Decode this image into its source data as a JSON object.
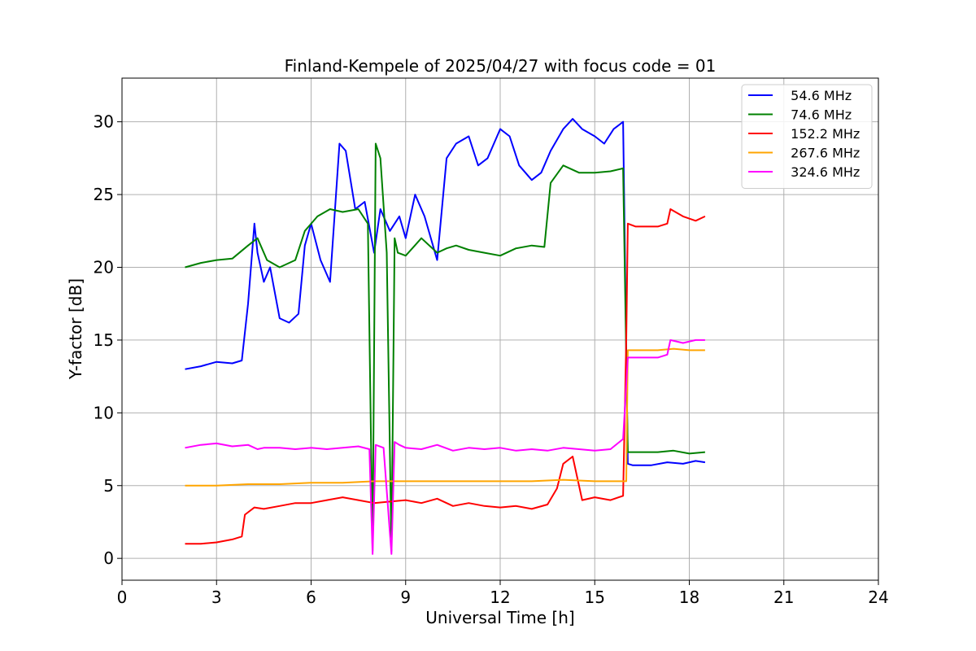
{
  "chart_data": {
    "type": "line",
    "title": "Finland-Kempele of 2025/04/27 with focus code = 01",
    "xlabel": "Universal Time [h]",
    "ylabel": "Y-factor [dB]",
    "xlim": [
      0,
      24
    ],
    "ylim": [
      -1.5,
      33
    ],
    "xticks": [
      0,
      3,
      6,
      9,
      12,
      15,
      18,
      21,
      24
    ],
    "yticks": [
      0,
      5,
      10,
      15,
      20,
      25,
      30
    ],
    "grid": true,
    "legend_position": "top-right",
    "series": [
      {
        "name": "  54.6 MHz",
        "color": "#0000ff",
        "x": [
          2.0,
          2.5,
          3.0,
          3.5,
          3.8,
          4.0,
          4.2,
          4.3,
          4.5,
          4.7,
          5.0,
          5.3,
          5.6,
          5.8,
          6.0,
          6.3,
          6.6,
          6.9,
          7.1,
          7.4,
          7.7,
          8.0,
          8.2,
          8.5,
          8.8,
          9.0,
          9.3,
          9.6,
          10.0,
          10.3,
          10.6,
          11.0,
          11.3,
          11.6,
          12.0,
          12.3,
          12.6,
          13.0,
          13.3,
          13.6,
          14.0,
          14.3,
          14.6,
          15.0,
          15.3,
          15.6,
          15.9,
          16.05,
          16.2,
          16.8,
          17.3,
          17.8,
          18.2,
          18.5
        ],
        "y": [
          13.0,
          13.2,
          13.5,
          13.4,
          13.6,
          17.5,
          23.0,
          21.0,
          19.0,
          20.0,
          16.5,
          16.2,
          16.8,
          21.5,
          23.0,
          20.5,
          19.0,
          28.5,
          28.0,
          24.0,
          24.5,
          21.0,
          24.0,
          22.5,
          23.5,
          22.0,
          25.0,
          23.5,
          20.5,
          27.5,
          28.5,
          29.0,
          27.0,
          27.5,
          29.5,
          29.0,
          27.0,
          26.0,
          26.5,
          28.0,
          29.5,
          30.2,
          29.5,
          29.0,
          28.5,
          29.5,
          30.0,
          6.5,
          6.4,
          6.4,
          6.6,
          6.5,
          6.7,
          6.6
        ]
      },
      {
        "name": "  74.6 MHz",
        "color": "#008000",
        "x": [
          2.0,
          2.5,
          3.0,
          3.5,
          4.0,
          4.3,
          4.6,
          5.0,
          5.5,
          5.8,
          6.2,
          6.6,
          7.0,
          7.5,
          7.8,
          7.95,
          8.05,
          8.2,
          8.4,
          8.55,
          8.65,
          8.75,
          9.0,
          9.5,
          10.0,
          10.3,
          10.6,
          11.0,
          11.5,
          12.0,
          12.5,
          13.0,
          13.4,
          13.6,
          14.0,
          14.5,
          15.0,
          15.5,
          15.9,
          16.05,
          16.5,
          17.0,
          17.5,
          18.0,
          18.5
        ],
        "y": [
          20.0,
          20.3,
          20.5,
          20.6,
          21.5,
          22.0,
          20.5,
          20.0,
          20.5,
          22.5,
          23.5,
          24.0,
          23.8,
          24.0,
          23.0,
          0.5,
          28.5,
          27.5,
          21.0,
          0.5,
          22.0,
          21.0,
          20.8,
          22.0,
          21.0,
          21.3,
          21.5,
          21.2,
          21.0,
          20.8,
          21.3,
          21.5,
          21.4,
          25.8,
          27.0,
          26.5,
          26.5,
          26.6,
          26.8,
          7.3,
          7.3,
          7.3,
          7.4,
          7.2,
          7.3
        ]
      },
      {
        "name": "  152.2 MHz",
        "color": "#ff0000",
        "x": [
          2.0,
          2.5,
          3.0,
          3.5,
          3.8,
          3.9,
          4.2,
          4.5,
          5.0,
          5.5,
          6.0,
          6.5,
          7.0,
          7.5,
          8.0,
          8.5,
          9.0,
          9.5,
          10.0,
          10.5,
          11.0,
          11.5,
          12.0,
          12.5,
          13.0,
          13.5,
          13.8,
          14.0,
          14.3,
          14.6,
          15.0,
          15.5,
          15.9,
          16.0,
          16.05,
          16.3,
          16.7,
          17.0,
          17.3,
          17.4,
          17.8,
          18.2,
          18.5
        ],
        "y": [
          1.0,
          1.0,
          1.1,
          1.3,
          1.5,
          3.0,
          3.5,
          3.4,
          3.6,
          3.8,
          3.8,
          4.0,
          4.2,
          4.0,
          3.8,
          3.9,
          4.0,
          3.8,
          4.1,
          3.6,
          3.8,
          3.6,
          3.5,
          3.6,
          3.4,
          3.7,
          4.8,
          6.5,
          7.0,
          4.0,
          4.2,
          4.0,
          4.3,
          15.0,
          23.0,
          22.8,
          22.8,
          22.8,
          23.0,
          24.0,
          23.5,
          23.2,
          23.5
        ]
      },
      {
        "name": "  267.6 MHz",
        "color": "#ffa500",
        "x": [
          2.0,
          3.0,
          4.0,
          5.0,
          6.0,
          7.0,
          8.0,
          9.0,
          10.0,
          11.0,
          12.0,
          13.0,
          14.0,
          15.0,
          16.0,
          16.05,
          16.5,
          17.0,
          17.5,
          18.0,
          18.5
        ],
        "y": [
          5.0,
          5.0,
          5.1,
          5.1,
          5.2,
          5.2,
          5.3,
          5.3,
          5.3,
          5.3,
          5.3,
          5.3,
          5.4,
          5.3,
          5.3,
          14.3,
          14.3,
          14.3,
          14.4,
          14.3,
          14.3
        ]
      },
      {
        "name": "  324.6 MHz",
        "color": "#ff00ff",
        "x": [
          2.0,
          2.5,
          3.0,
          3.5,
          4.0,
          4.3,
          4.5,
          5.0,
          5.5,
          6.0,
          6.5,
          7.0,
          7.5,
          7.85,
          7.95,
          8.05,
          8.3,
          8.55,
          8.65,
          8.8,
          9.0,
          9.5,
          10.0,
          10.5,
          11.0,
          11.5,
          12.0,
          12.5,
          13.0,
          13.5,
          14.0,
          14.5,
          15.0,
          15.5,
          15.9,
          16.05,
          16.5,
          17.0,
          17.3,
          17.4,
          17.8,
          18.2,
          18.5
        ],
        "y": [
          7.6,
          7.8,
          7.9,
          7.7,
          7.8,
          7.5,
          7.6,
          7.6,
          7.5,
          7.6,
          7.5,
          7.6,
          7.7,
          7.5,
          0.3,
          7.8,
          7.6,
          0.3,
          8.0,
          7.8,
          7.6,
          7.5,
          7.8,
          7.4,
          7.6,
          7.5,
          7.6,
          7.4,
          7.5,
          7.4,
          7.6,
          7.5,
          7.4,
          7.5,
          8.2,
          13.8,
          13.8,
          13.8,
          14.0,
          15.0,
          14.8,
          15.0,
          15.0
        ]
      }
    ]
  }
}
